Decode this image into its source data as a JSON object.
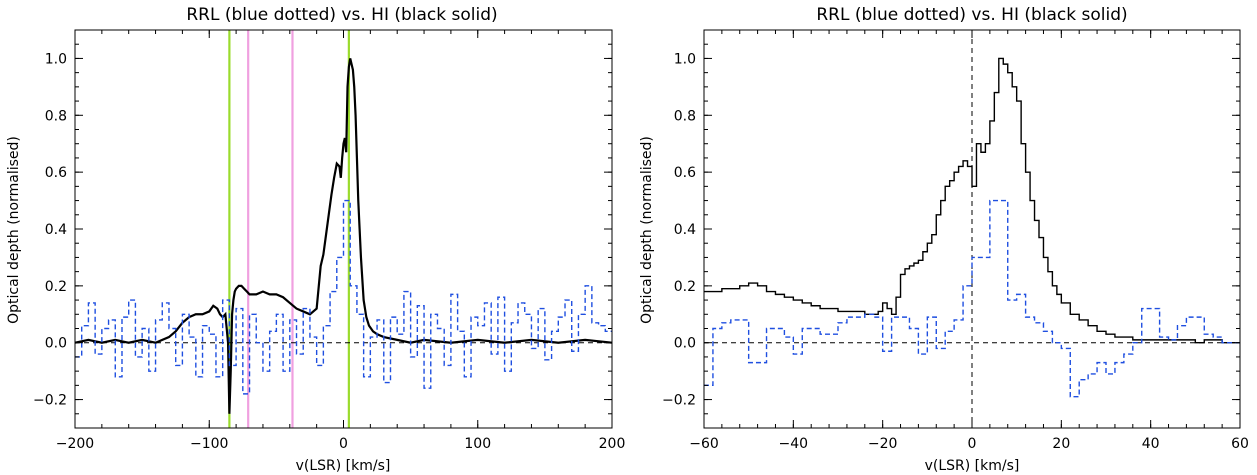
{
  "chart_data": [
    {
      "type": "line",
      "title": "RRL (blue dotted) vs. HI (black solid)",
      "xlabel": "v(LSR) [km/s]",
      "ylabel": "Optical depth  (normalised)",
      "xlim": [
        -200,
        200
      ],
      "ylim": [
        -0.3,
        1.1
      ],
      "xticks": [
        -200,
        -100,
        0,
        100,
        200
      ],
      "yticks": [
        -0.2,
        0.0,
        0.2,
        0.4,
        0.6,
        0.8,
        1.0
      ],
      "ytick_labels": [
        "−0.2",
        "0.0",
        "0.2",
        "0.4",
        "0.6",
        "0.8",
        "1.0"
      ],
      "xtick_labels": [
        "−200",
        "−100",
        "0",
        "100",
        "200"
      ],
      "grid": false,
      "vlines": [
        {
          "x": -85,
          "color": "#9ADB2D"
        },
        {
          "x": -71,
          "color": "#F0A0E0"
        },
        {
          "x": -38,
          "color": "#F0A0E0"
        },
        {
          "x": 4,
          "color": "#9ADB2D"
        }
      ],
      "hline": {
        "y": 0.0,
        "style": "dashed",
        "color": "#000000"
      },
      "series": [
        {
          "style": "solid",
          "color": "#000000",
          "x": [
            -200,
            -190,
            -180,
            -170,
            -160,
            -150,
            -140,
            -130,
            -125,
            -120,
            -115,
            -110,
            -105,
            -100,
            -97,
            -94,
            -92,
            -90,
            -88,
            -86,
            -85,
            -84,
            -83,
            -82,
            -81,
            -80,
            -78,
            -76,
            -74,
            -72,
            -70,
            -65,
            -60,
            -55,
            -50,
            -45,
            -40,
            -35,
            -30,
            -25,
            -20,
            -17,
            -15,
            -13,
            -11,
            -9,
            -7,
            -5,
            -3,
            -2,
            -1,
            0,
            1,
            2,
            3,
            4,
            5,
            6,
            7,
            8,
            9,
            10,
            11,
            12,
            13,
            15,
            17,
            19,
            22,
            25,
            30,
            40,
            50,
            60,
            80,
            100,
            120,
            140,
            160,
            180,
            200
          ],
          "y": [
            0.0,
            0.01,
            0.0,
            0.01,
            0.0,
            0.01,
            0.0,
            0.02,
            0.04,
            0.07,
            0.09,
            0.1,
            0.1,
            0.11,
            0.13,
            0.12,
            0.1,
            0.09,
            0.1,
            0.0,
            -0.25,
            -0.1,
            0.1,
            0.15,
            0.18,
            0.19,
            0.2,
            0.2,
            0.19,
            0.18,
            0.17,
            0.17,
            0.18,
            0.17,
            0.17,
            0.16,
            0.14,
            0.12,
            0.11,
            0.1,
            0.12,
            0.27,
            0.31,
            0.38,
            0.45,
            0.52,
            0.58,
            0.63,
            0.62,
            0.58,
            0.65,
            0.7,
            0.72,
            0.67,
            0.9,
            0.97,
            1.0,
            0.98,
            0.96,
            0.9,
            0.8,
            0.65,
            0.5,
            0.4,
            0.3,
            0.15,
            0.09,
            0.06,
            0.04,
            0.03,
            0.02,
            0.01,
            0.0,
            0.01,
            0.0,
            0.01,
            0.0,
            0.01,
            0.0,
            0.01,
            0.0
          ]
        },
        {
          "style": "dashed-step",
          "color": "#1F4FE0",
          "x": [
            -200,
            -195,
            -190,
            -185,
            -180,
            -175,
            -170,
            -165,
            -160,
            -155,
            -150,
            -145,
            -140,
            -135,
            -130,
            -125,
            -120,
            -115,
            -110,
            -105,
            -100,
            -95,
            -90,
            -85,
            -80,
            -75,
            -70,
            -65,
            -60,
            -55,
            -50,
            -45,
            -40,
            -35,
            -30,
            -25,
            -20,
            -15,
            -10,
            -5,
            0,
            5,
            10,
            15,
            20,
            25,
            30,
            35,
            40,
            45,
            50,
            55,
            60,
            65,
            70,
            75,
            80,
            85,
            90,
            95,
            100,
            105,
            110,
            115,
            120,
            125,
            130,
            135,
            140,
            145,
            150,
            155,
            160,
            165,
            170,
            175,
            180,
            185,
            190,
            195
          ],
          "y": [
            -0.05,
            0.06,
            0.14,
            -0.04,
            0.05,
            0.08,
            -0.12,
            0.09,
            0.15,
            -0.05,
            0.05,
            -0.1,
            0.08,
            0.14,
            0.05,
            -0.08,
            0.1,
            0.02,
            -0.12,
            0.06,
            0.03,
            -0.12,
            0.15,
            -0.08,
            0.12,
            -0.18,
            0.1,
            0.0,
            -0.1,
            0.04,
            0.1,
            -0.1,
            0.08,
            -0.04,
            0.12,
            0.02,
            -0.08,
            0.06,
            0.18,
            0.3,
            0.5,
            0.2,
            0.1,
            -0.12,
            0.02,
            0.08,
            -0.14,
            0.09,
            0.03,
            0.18,
            -0.05,
            0.13,
            -0.16,
            0.1,
            0.05,
            -0.08,
            0.17,
            0.04,
            -0.12,
            0.09,
            0.06,
            0.14,
            -0.04,
            0.16,
            -0.1,
            0.07,
            0.14,
            0.1,
            -0.02,
            0.12,
            -0.06,
            0.04,
            0.09,
            0.15,
            -0.03,
            0.1,
            0.2,
            0.07,
            0.06,
            0.04
          ]
        }
      ]
    },
    {
      "type": "line",
      "title": "RRL (blue dotted) vs. HI (black solid)",
      "xlabel": "v(LSR) [km/s]",
      "ylabel": "Optical depth  (normalised)",
      "xlim": [
        -60,
        60
      ],
      "ylim": [
        -0.3,
        1.1
      ],
      "xticks": [
        -60,
        -40,
        -20,
        0,
        20,
        40,
        60
      ],
      "xtick_labels": [
        "−60",
        "−40",
        "−20",
        "0",
        "20",
        "40",
        "60"
      ],
      "yticks": [
        -0.2,
        0.0,
        0.2,
        0.4,
        0.6,
        0.8,
        1.0
      ],
      "ytick_labels": [
        "−0.2",
        "0.0",
        "0.2",
        "0.4",
        "0.6",
        "0.8",
        "1.0"
      ],
      "grid": false,
      "vlines": [
        {
          "x": 0,
          "color": "#000000",
          "style": "dashed"
        }
      ],
      "hline": {
        "y": 0.0,
        "style": "dashed",
        "color": "#000000"
      },
      "series": [
        {
          "style": "solid-step",
          "color": "#000000",
          "x": [
            -60,
            -58,
            -56,
            -54,
            -52,
            -50,
            -48,
            -46,
            -44,
            -42,
            -40,
            -38,
            -36,
            -34,
            -32,
            -30,
            -28,
            -26,
            -24,
            -22,
            -21,
            -20,
            -19,
            -18,
            -17,
            -16,
            -15,
            -14,
            -13,
            -12,
            -11,
            -10,
            -9,
            -8,
            -7,
            -6,
            -5,
            -4,
            -3,
            -2,
            -1,
            0,
            1,
            2,
            3,
            4,
            5,
            6,
            7,
            8,
            9,
            10,
            11,
            12,
            13,
            14,
            15,
            16,
            17,
            18,
            19,
            20,
            22,
            24,
            26,
            28,
            30,
            32,
            34,
            36,
            38,
            40,
            42,
            44,
            46,
            48,
            50,
            52,
            54,
            56,
            58
          ],
          "y": [
            0.18,
            0.18,
            0.19,
            0.19,
            0.2,
            0.21,
            0.2,
            0.18,
            0.17,
            0.16,
            0.15,
            0.14,
            0.13,
            0.12,
            0.12,
            0.11,
            0.11,
            0.11,
            0.1,
            0.1,
            0.11,
            0.14,
            0.12,
            0.1,
            0.16,
            0.24,
            0.26,
            0.27,
            0.28,
            0.29,
            0.32,
            0.35,
            0.38,
            0.45,
            0.5,
            0.55,
            0.57,
            0.6,
            0.62,
            0.64,
            0.62,
            0.55,
            0.7,
            0.67,
            0.7,
            0.78,
            0.88,
            1.0,
            0.98,
            0.95,
            0.9,
            0.85,
            0.7,
            0.6,
            0.5,
            0.43,
            0.37,
            0.3,
            0.25,
            0.2,
            0.17,
            0.14,
            0.1,
            0.08,
            0.06,
            0.04,
            0.03,
            0.02,
            0.02,
            0.01,
            0.01,
            0.01,
            0.01,
            0.01,
            0.01,
            0.01,
            0.0,
            0.01,
            0.01,
            0.0,
            0.0
          ]
        },
        {
          "style": "dashed-step",
          "color": "#1F4FE0",
          "x": [
            -60,
            -58,
            -56,
            -54,
            -52,
            -50,
            -48,
            -46,
            -44,
            -42,
            -40,
            -38,
            -36,
            -34,
            -32,
            -30,
            -28,
            -26,
            -24,
            -22,
            -20,
            -18,
            -16,
            -14,
            -12,
            -10,
            -8,
            -6,
            -4,
            -2,
            0,
            2,
            4,
            6,
            8,
            10,
            12,
            14,
            16,
            18,
            20,
            22,
            24,
            26,
            28,
            30,
            32,
            34,
            36,
            38,
            40,
            42,
            44,
            46,
            48,
            50,
            52,
            54,
            56,
            58
          ],
          "y": [
            -0.15,
            0.05,
            0.07,
            0.08,
            0.08,
            -0.07,
            -0.07,
            0.05,
            0.05,
            0.02,
            -0.04,
            0.05,
            0.05,
            0.03,
            0.03,
            0.07,
            0.09,
            0.09,
            0.1,
            0.09,
            -0.03,
            0.09,
            0.09,
            0.05,
            -0.04,
            0.09,
            -0.02,
            0.04,
            0.08,
            0.2,
            0.3,
            0.3,
            0.5,
            0.5,
            0.15,
            0.17,
            0.09,
            0.07,
            0.04,
            0.0,
            -0.02,
            -0.19,
            -0.13,
            -0.11,
            -0.07,
            -0.11,
            -0.07,
            -0.04,
            0.0,
            0.12,
            0.12,
            0.02,
            0.01,
            0.06,
            0.09,
            0.09,
            0.03,
            0.02,
            0.0,
            0.0
          ]
        }
      ]
    }
  ]
}
